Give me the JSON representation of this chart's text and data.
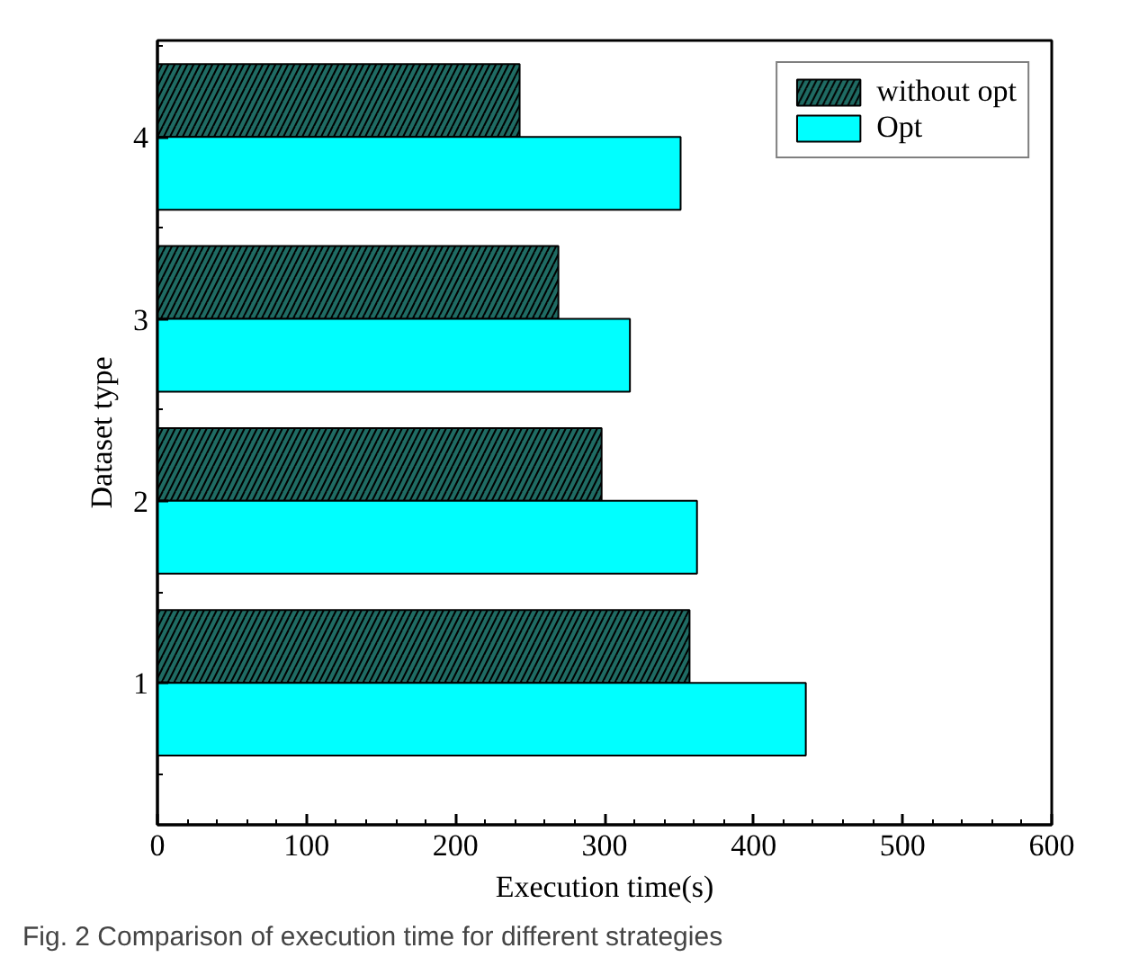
{
  "chart_data": {
    "type": "bar",
    "orientation": "horizontal",
    "xlabel": "Execution time(s)",
    "ylabel": "Dataset type",
    "categories": [
      "4",
      "3",
      "2",
      "1"
    ],
    "series": [
      {
        "name": "without opt",
        "color": "#1f6b63",
        "values": [
          243,
          269,
          298,
          357
        ]
      },
      {
        "name": "Opt",
        "color": "#00ffff",
        "values": [
          351,
          317,
          362,
          435
        ]
      }
    ],
    "xlim": [
      0,
      600
    ],
    "xticks": [
      0,
      100,
      200,
      300,
      400,
      500,
      600
    ],
    "grid": false,
    "legend": "top right",
    "annotations": [
      "Fig. 2 Comparison of execution time for different strategies"
    ]
  }
}
